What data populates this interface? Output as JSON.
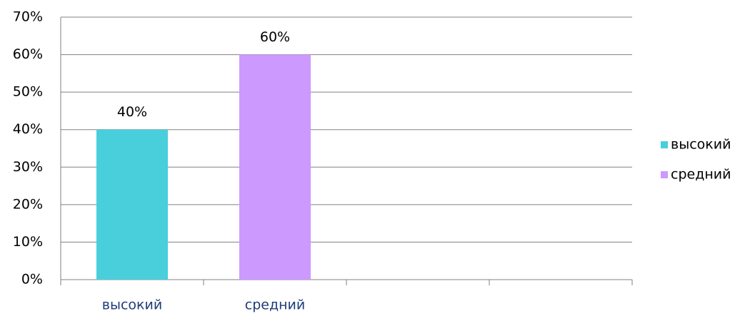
{
  "chart_data": {
    "type": "bar",
    "categories": [
      "высокий",
      "средний",
      null,
      null
    ],
    "series": [
      {
        "name": "высокий",
        "color": "#48cfdb",
        "values": [
          40,
          null,
          null,
          null
        ],
        "value_labels": [
          "40%",
          null,
          null,
          null
        ]
      },
      {
        "name": "средний",
        "color": "#cc99ff",
        "values": [
          null,
          60,
          null,
          null
        ],
        "value_labels": [
          null,
          "60%",
          null,
          null
        ]
      }
    ],
    "ylim": [
      0,
      70
    ],
    "yticks": [
      {
        "value": 0,
        "label": "0%"
      },
      {
        "value": 10,
        "label": "10%"
      },
      {
        "value": 20,
        "label": "20%"
      },
      {
        "value": 30,
        "label": "30%"
      },
      {
        "value": 40,
        "label": "40%"
      },
      {
        "value": 50,
        "label": "50%"
      },
      {
        "value": 60,
        "label": "60%"
      },
      {
        "value": 70,
        "label": "70%"
      }
    ],
    "grid": true,
    "legend": "right"
  }
}
